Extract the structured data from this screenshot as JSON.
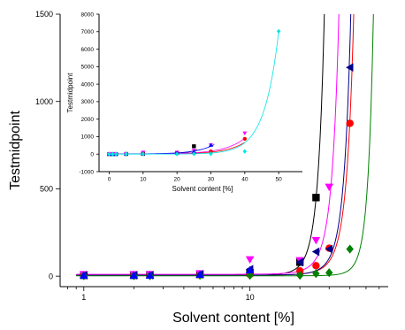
{
  "chart_data": [
    {
      "type": "scatter",
      "title": "",
      "xlabel": "Solvent content [%]",
      "ylabel": "Testmidpoint",
      "xscale": "log",
      "xlim": [
        0.72,
        68
      ],
      "ylim": [
        -60,
        1500
      ],
      "x_ticks": [
        1,
        10
      ],
      "x_tick_labels": [
        "1",
        "10"
      ],
      "y_ticks": [
        0,
        500,
        1000,
        1500
      ],
      "y_tick_labels": [
        "0",
        "500",
        "1000",
        "1500"
      ],
      "grid": false,
      "legend": "none",
      "series": [
        {
          "marker": "square",
          "color": "#000000",
          "x": [
            1,
            2,
            2.5,
            5,
            10,
            20,
            25
          ],
          "y": [
            5,
            5,
            8,
            10,
            20,
            80,
            450
          ],
          "fit": {
            "a": 0.02,
            "c": 0.4,
            "d": 4
          }
        },
        {
          "marker": "circle",
          "color": "#ff0000",
          "x": [
            1,
            2,
            2.5,
            5,
            10,
            20,
            25,
            30,
            40
          ],
          "y": [
            5,
            5,
            5,
            8,
            10,
            30,
            60,
            160,
            875
          ],
          "fit": {
            "a": 0.06,
            "c": 0.24,
            "d": 5
          }
        },
        {
          "marker": "triangle-down",
          "color": "#ff00ff",
          "x": [
            1,
            2,
            2.5,
            5,
            10,
            20,
            25,
            30
          ],
          "y": [
            10,
            10,
            10,
            15,
            95,
            90,
            205,
            510
          ],
          "fit": {
            "a": 0.05,
            "c": 0.3,
            "d": 10
          }
        },
        {
          "marker": "triangle-left",
          "color": "#00008b",
          "x": [
            1,
            2,
            2.5,
            5,
            10,
            20,
            25,
            30,
            40
          ],
          "y": [
            5,
            5,
            5,
            10,
            40,
            80,
            140,
            155,
            1195
          ],
          "fit": {
            "a": 0.04,
            "c": 0.26,
            "d": 5
          }
        },
        {
          "marker": "diamond",
          "color": "#008000",
          "x": [
            1,
            2,
            2.5,
            5,
            10,
            20,
            25,
            30,
            40
          ],
          "y": [
            2,
            2,
            2,
            5,
            5,
            5,
            15,
            20,
            155
          ],
          "fit": {
            "a": 0.0025,
            "c": 0.24,
            "d": 2
          }
        },
        {
          "marker": "triangle-up",
          "color": "#0000ff",
          "x": [
            1,
            2,
            2.5,
            5,
            10
          ],
          "y": [
            5,
            5,
            5,
            10,
            35
          ],
          "fit": null
        }
      ]
    },
    {
      "type": "scatter",
      "title": "",
      "xlabel": "Solvent content [%]",
      "ylabel": "Testmidpoint",
      "xscale": "linear",
      "xlim": [
        -3,
        57
      ],
      "ylim": [
        -1000,
        8000
      ],
      "x_ticks": [
        0,
        10,
        20,
        30,
        40,
        50
      ],
      "x_tick_labels": [
        "0",
        "10",
        "20",
        "30",
        "40",
        "50"
      ],
      "y_ticks": [
        -1000,
        0,
        1000,
        2000,
        3000,
        4000,
        5000,
        6000,
        7000,
        8000
      ],
      "y_tick_labels": [
        "-1000",
        "0",
        "1000",
        "2000",
        "3000",
        "4000",
        "5000",
        "6000",
        "7000",
        "8000"
      ],
      "grid": false,
      "legend": "none",
      "series": [
        {
          "marker": "square",
          "color": "#000000",
          "x": [
            0,
            1,
            2,
            5,
            10,
            20,
            25
          ],
          "y": [
            5,
            5,
            5,
            10,
            20,
            80,
            450
          ]
        },
        {
          "marker": "circle",
          "color": "#ff0000",
          "x": [
            0,
            1,
            2,
            5,
            10,
            20,
            25,
            30,
            40
          ],
          "y": [
            5,
            5,
            5,
            8,
            10,
            30,
            60,
            160,
            875
          ]
        },
        {
          "marker": "triangle-down",
          "color": "#ff00ff",
          "x": [
            0,
            1,
            2,
            5,
            10,
            20,
            25,
            30,
            40
          ],
          "y": [
            10,
            10,
            10,
            15,
            95,
            90,
            205,
            510,
            1195
          ]
        },
        {
          "marker": "triangle-up",
          "color": "#0000ff",
          "x": [
            0,
            1,
            2,
            5,
            10,
            20,
            25,
            30
          ],
          "y": [
            5,
            5,
            5,
            10,
            35,
            80,
            140,
            520
          ]
        },
        {
          "marker": "diamond",
          "color": "#00e5e5",
          "x": [
            0,
            1,
            2,
            5,
            10,
            20,
            25,
            30,
            40,
            50
          ],
          "y": [
            2,
            2,
            2,
            5,
            5,
            5,
            15,
            20,
            155,
            7020
          ]
        }
      ],
      "fit_curves": [
        {
          "color": "#000000",
          "a": 0.1,
          "c": 0.3,
          "d": 5,
          "xmax": 26
        },
        {
          "color": "#ff0000",
          "a": 0.5,
          "c": 0.18,
          "d": 5,
          "xmax": 40
        },
        {
          "color": "#ff00ff",
          "a": 1.0,
          "c": 0.17,
          "d": 10,
          "xmax": 40
        },
        {
          "color": "#0000ff",
          "a": 1.5,
          "c": 0.19,
          "d": 5,
          "xmax": 31
        },
        {
          "color": "#00e5e5",
          "a": 0.05,
          "c": 0.237,
          "d": 2,
          "xmax": 50
        }
      ]
    }
  ]
}
